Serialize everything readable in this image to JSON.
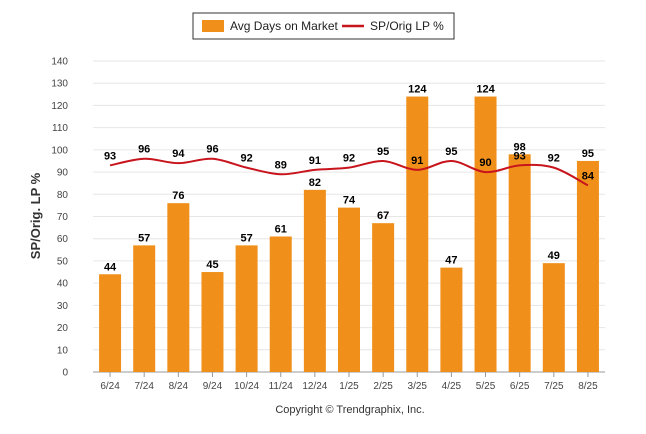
{
  "chart_data": {
    "type": "bar",
    "categories": [
      "6/24",
      "7/24",
      "8/24",
      "9/24",
      "10/24",
      "11/24",
      "12/24",
      "1/25",
      "2/25",
      "3/25",
      "4/25",
      "5/25",
      "6/25",
      "7/25",
      "8/25"
    ],
    "series": [
      {
        "name": "Avg Days on Market",
        "type": "bar",
        "values": [
          44,
          57,
          76,
          45,
          57,
          61,
          82,
          74,
          67,
          124,
          47,
          124,
          98,
          49,
          95
        ]
      },
      {
        "name": "SP/Orig LP %",
        "type": "line",
        "values": [
          93,
          96,
          94,
          96,
          92,
          89,
          91,
          92,
          95,
          91,
          95,
          90,
          93,
          92,
          84
        ]
      }
    ],
    "ylabel": "SP/Orig. LP %",
    "xlabel": "",
    "ylim": [
      0,
      140
    ],
    "yticks": [
      0,
      10,
      20,
      30,
      40,
      50,
      60,
      70,
      80,
      90,
      100,
      110,
      120,
      130,
      140
    ],
    "grid": true,
    "legend_position": "top-center",
    "credit": "Copyright © Trendgraphix, Inc.",
    "colors": {
      "bar": "#f0901a",
      "line": "#c8141c",
      "grid": "#e6e6e6",
      "axis": "#999999"
    }
  }
}
